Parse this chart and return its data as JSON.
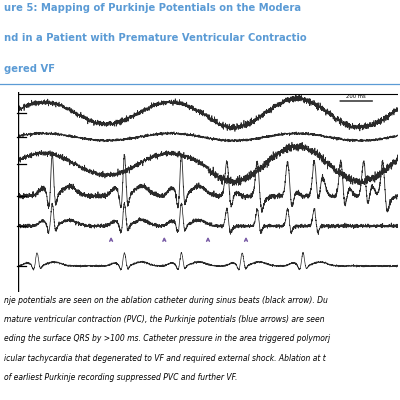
{
  "title_line1": "ure 5: Mapping of Purkinje Potentials on the Modera",
  "title_line2": "nd in a Patient with Premature Ventricular Contractio",
  "title_line3": "gered VF",
  "title_color": "#5B9BD5",
  "title_fontsize": 7.2,
  "caption_lines": [
    "nje potentials are seen on the ablation catheter during sinus beats (black arrow). Du",
    "mature ventricular contraction (PVC), the Purkinje potentials (blue arrows) are seen",
    "eding the surface QRS by >100 ms. Catheter pressure in the area triggered polymorj",
    "icular tachycardia that degenerated to VF and required external shock. Ablation at t",
    "of earliest Purkinje recording suppressed PVC and further VF."
  ],
  "caption_fontsize": 5.5,
  "bg_color": "#ffffff",
  "trace_color": "#2a2a2a",
  "arrow_color": "#7B5EA7",
  "separator_color": "#5B9BD5"
}
